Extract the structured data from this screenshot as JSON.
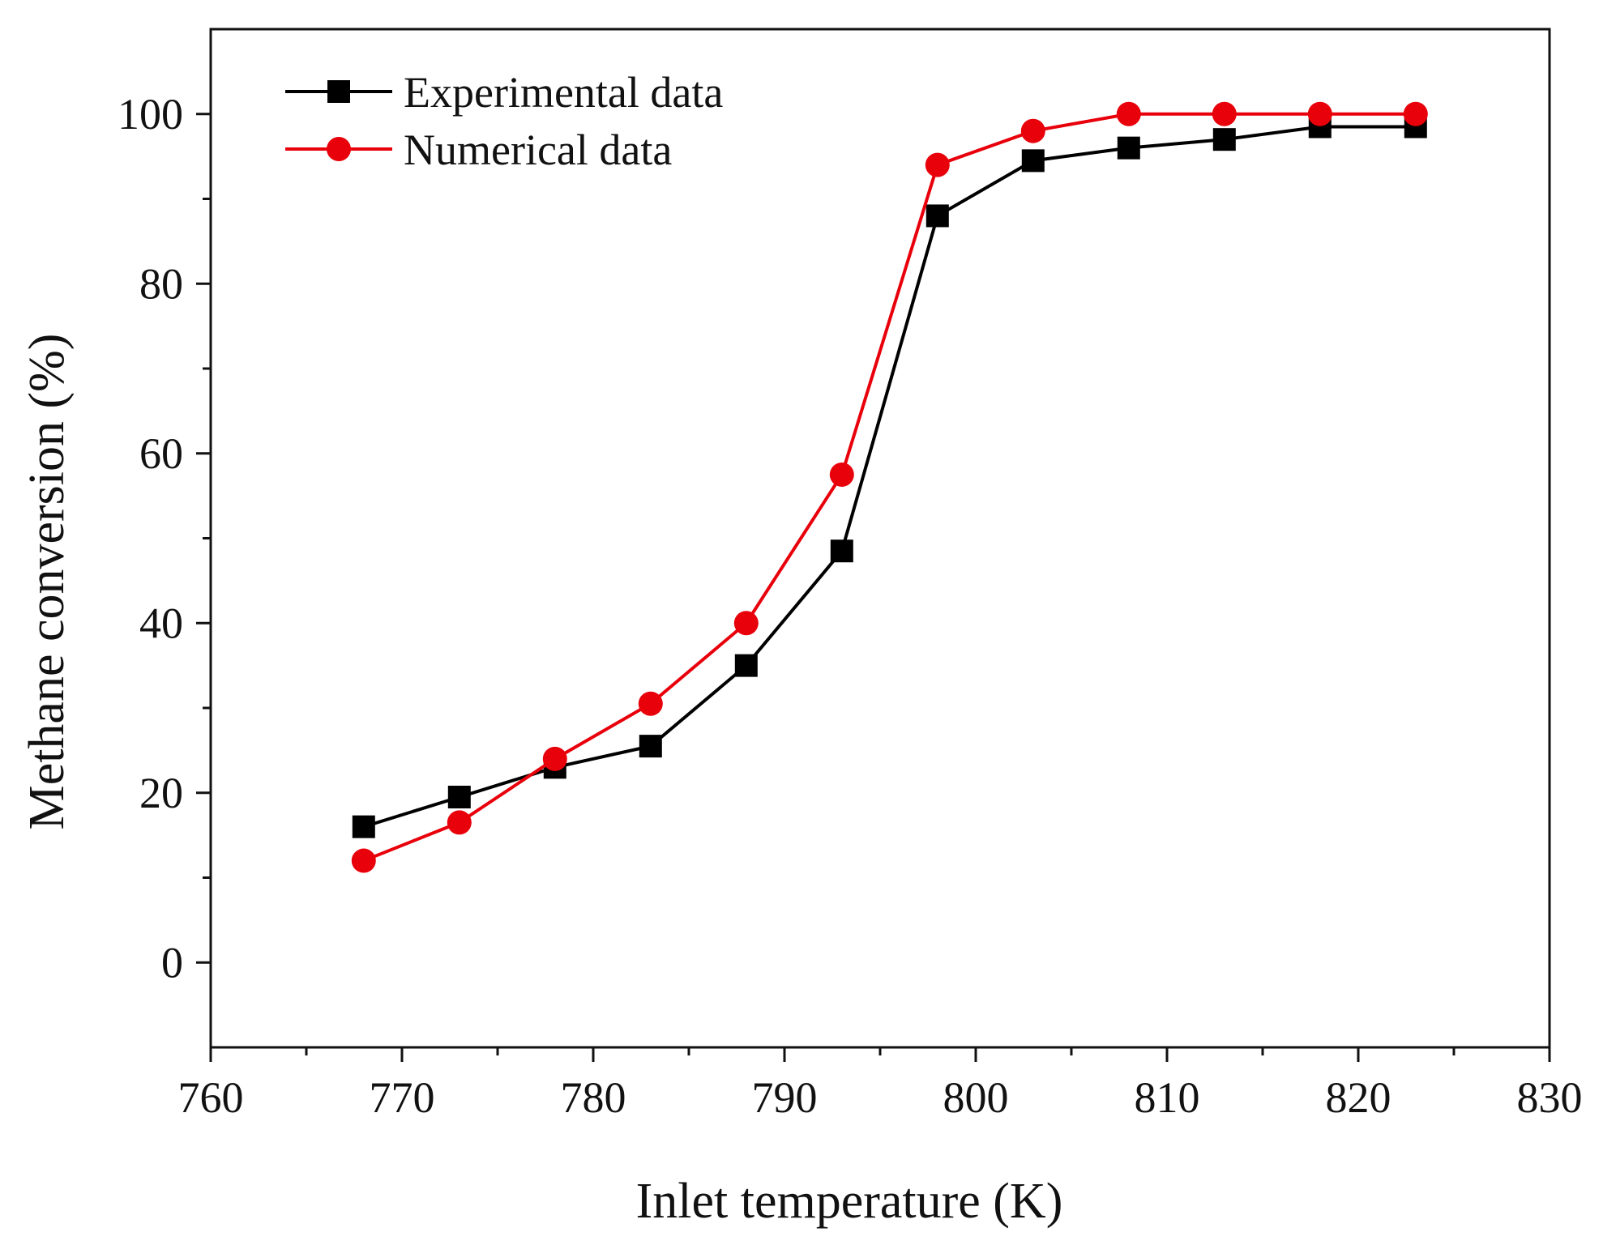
{
  "chart_data": {
    "type": "line",
    "title": "",
    "xlabel": "Inlet temperature (K)",
    "ylabel": "Methane conversion (%)",
    "xlim": [
      760,
      830
    ],
    "ylim": [
      -10,
      110
    ],
    "x_ticks": [
      760,
      770,
      780,
      790,
      800,
      810,
      820,
      830
    ],
    "y_ticks": [
      0,
      20,
      40,
      60,
      80,
      100
    ],
    "x_minor_step": 5,
    "y_minor_step": 10,
    "grid": false,
    "legend_position": "top-left",
    "series": [
      {
        "name": "Experimental data",
        "color": "#000000",
        "marker": "square",
        "x": [
          768,
          773,
          778,
          783,
          788,
          793,
          798,
          803,
          808,
          813,
          818,
          823
        ],
        "values": [
          16,
          19.5,
          23,
          25.5,
          35,
          48.5,
          88,
          94.5,
          96,
          97,
          98.5,
          98.5
        ]
      },
      {
        "name": "Numerical data",
        "color": "#e8000b",
        "marker": "circle",
        "x": [
          768,
          773,
          778,
          783,
          788,
          793,
          798,
          803,
          808,
          813,
          818,
          823
        ],
        "values": [
          12,
          16.5,
          24,
          30.5,
          40,
          57.5,
          94,
          98,
          100,
          100,
          100,
          100
        ]
      }
    ]
  }
}
